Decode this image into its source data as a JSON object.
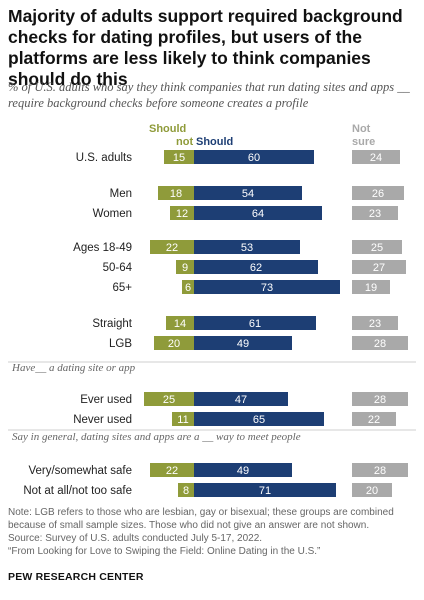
{
  "title": "Majority of adults support required background checks for dating profiles, but users of the platforms are less likely to think companies should do this",
  "subtitle": "% of U.S. adults who say they think companies that run dating sites and apps __ require background checks before someone creates a profile",
  "colors": {
    "should_not": "#8f9b3a",
    "should": "#1d3e74",
    "not_sure": "#a9a9a9",
    "section": "#666666"
  },
  "chart_data": {
    "type": "bar",
    "legend": {
      "should_not": "Should\nnot",
      "should": "Should",
      "not_sure": "Not\nsure"
    },
    "sections": [
      {
        "label": "",
        "rows": [
          {
            "label": "U.S. adults",
            "should_not": 15,
            "should": 60,
            "not_sure": 24
          }
        ]
      },
      {
        "label": "",
        "rows": [
          {
            "label": "Men",
            "should_not": 18,
            "should": 54,
            "not_sure": 26
          },
          {
            "label": "Women",
            "should_not": 12,
            "should": 64,
            "not_sure": 23
          }
        ]
      },
      {
        "label": "",
        "rows": [
          {
            "label": "Ages 18-49",
            "should_not": 22,
            "should": 53,
            "not_sure": 25
          },
          {
            "label": "50-64",
            "should_not": 9,
            "should": 62,
            "not_sure": 27
          },
          {
            "label": "65+",
            "should_not": 6,
            "should": 73,
            "not_sure": 19
          }
        ]
      },
      {
        "label": "",
        "rows": [
          {
            "label": "Straight",
            "should_not": 14,
            "should": 61,
            "not_sure": 23
          },
          {
            "label": "LGB",
            "should_not": 20,
            "should": 49,
            "not_sure": 28
          }
        ]
      },
      {
        "label": "Have__ a dating site or app",
        "rows": [
          {
            "label": "Ever used",
            "should_not": 25,
            "should": 47,
            "not_sure": 28
          },
          {
            "label": "Never used",
            "should_not": 11,
            "should": 65,
            "not_sure": 22
          }
        ]
      },
      {
        "label": "Say in general, dating sites and apps are a __ way to meet people",
        "rows": [
          {
            "label": "Very/somewhat safe",
            "should_not": 22,
            "should": 49,
            "not_sure": 28
          },
          {
            "label": "Not at all/not too safe",
            "should_not": 8,
            "should": 71,
            "not_sure": 20
          }
        ]
      }
    ]
  },
  "notes": [
    "Note: LGB refers to those who are lesbian, gay or bisexual; these groups are combined because of small sample sizes. Those who did not give an answer are not shown.",
    "Source: Survey of U.S. adults conducted July 5-17, 2022.",
    "“From Looking for Love to Swiping the Field: Online Dating in the U.S.”"
  ],
  "brand": "PEW RESEARCH CENTER"
}
